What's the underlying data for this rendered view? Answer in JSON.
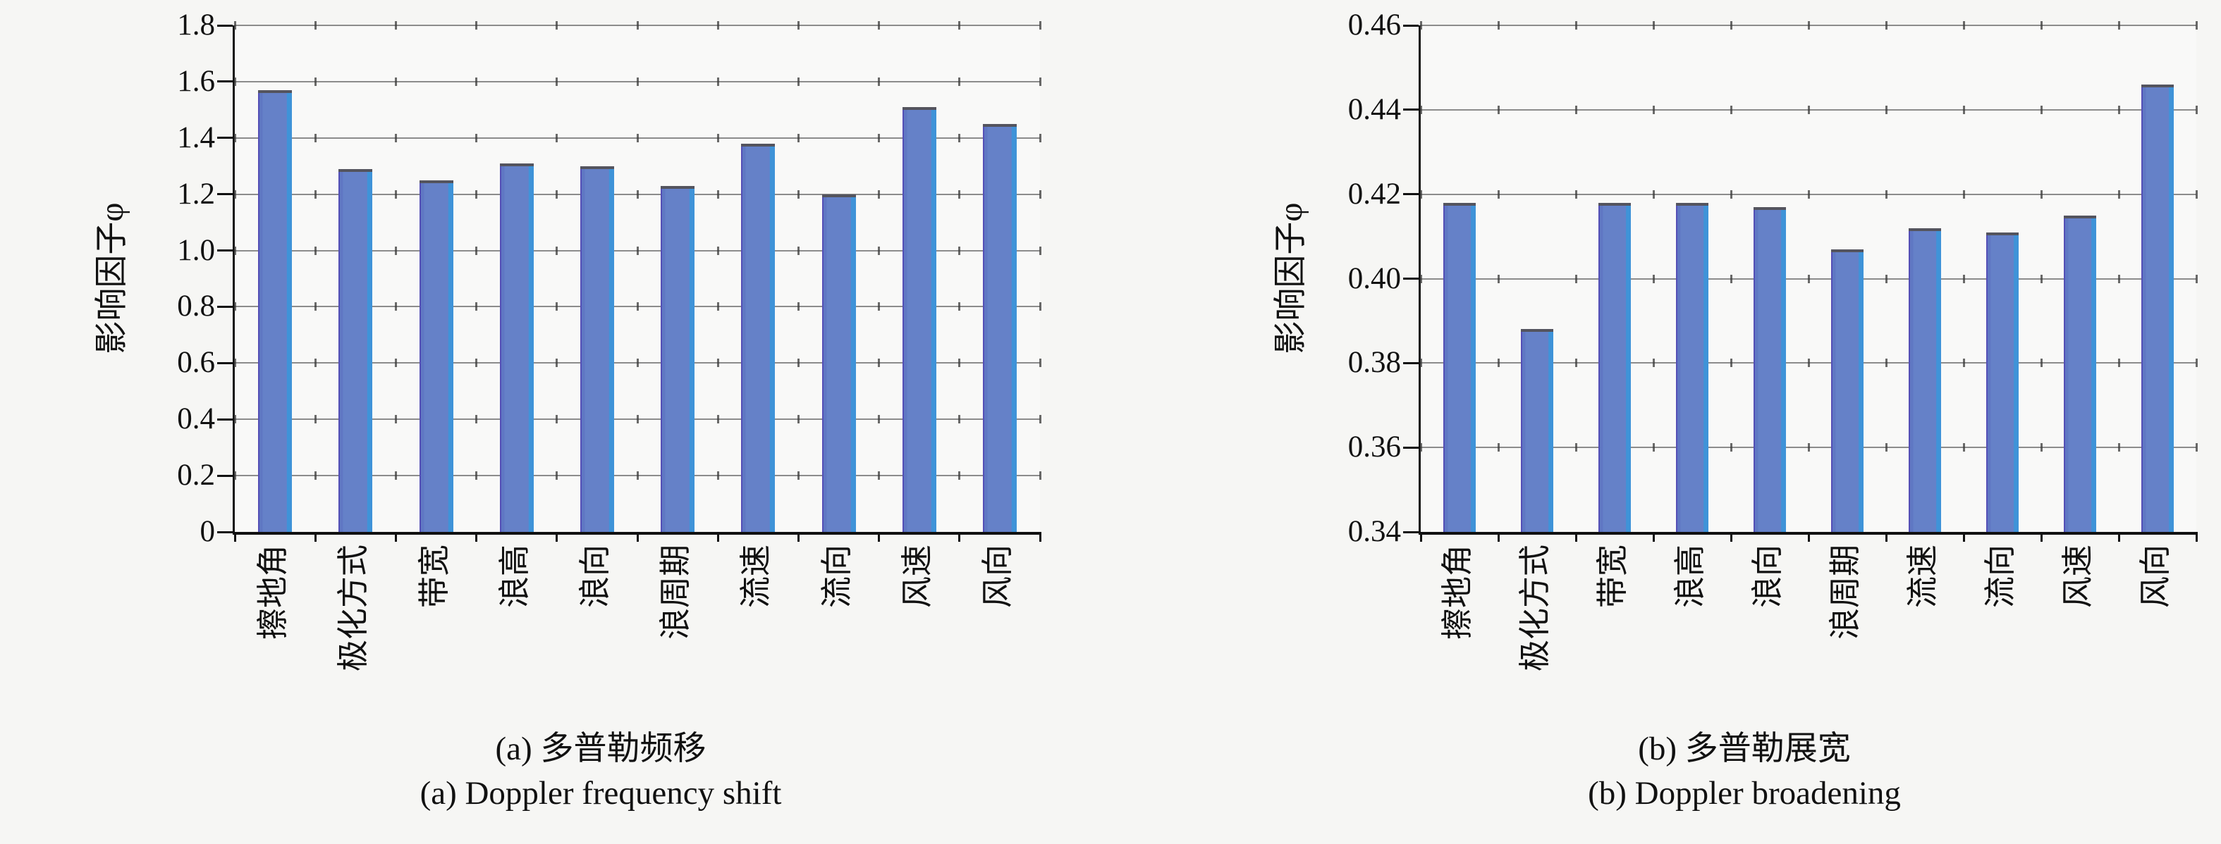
{
  "figure": {
    "background": "#f6f6f4",
    "gridline_color": "#8c8c8c",
    "axis_color": "#111111",
    "bar_fill_color": "#6581c8",
    "bar_edge_left_color": "#544fb6",
    "bar_edge_right_color": "#3f93d8",
    "bar_top_cap_color": "#54545e"
  },
  "chart_data": [
    {
      "type": "bar",
      "caption_zh": "(a) 多普勒频移",
      "caption_en": "(a) Doppler frequency shift",
      "ylabel": "影响因子φ",
      "categories": [
        "擦地角",
        "极化方式",
        "带宽",
        "浪高",
        "浪向",
        "浪周期",
        "流速",
        "流向",
        "风速",
        "风向"
      ],
      "values": [
        1.57,
        1.29,
        1.25,
        1.31,
        1.3,
        1.23,
        1.38,
        1.2,
        1.51,
        1.45
      ],
      "ylim": [
        0,
        1.8
      ],
      "grid": "horizontal",
      "legend": "none",
      "yticks": [
        {
          "label": "1.8",
          "value": 1.8
        },
        {
          "label": "1.6",
          "value": 1.6
        },
        {
          "label": "1.4",
          "value": 1.4
        },
        {
          "label": "1.2",
          "value": 1.2
        },
        {
          "label": "1.0",
          "value": 1.0
        },
        {
          "label": "0.8",
          "value": 0.8
        },
        {
          "label": "0.6",
          "value": 0.6
        },
        {
          "label": "0.4",
          "value": 0.4
        },
        {
          "label": "0.2",
          "value": 0.2
        },
        {
          "label": "0",
          "value": 0
        }
      ]
    },
    {
      "type": "bar",
      "caption_zh": "(b) 多普勒展宽",
      "caption_en": "(b) Doppler broadening",
      "ylabel": "影响因子φ",
      "categories": [
        "擦地角",
        "极化方式",
        "带宽",
        "浪高",
        "浪向",
        "浪周期",
        "流速",
        "流向",
        "风速",
        "风向"
      ],
      "values": [
        0.418,
        0.388,
        0.418,
        0.418,
        0.417,
        0.407,
        0.412,
        0.411,
        0.415,
        0.446
      ],
      "ylim": [
        0.34,
        0.46
      ],
      "grid": "horizontal",
      "legend": "none",
      "yticks": [
        {
          "label": "0.46",
          "value": 0.46
        },
        {
          "label": "0.44",
          "value": 0.44
        },
        {
          "label": "0.42",
          "value": 0.42
        },
        {
          "label": "0.40",
          "value": 0.4
        },
        {
          "label": "0.38",
          "value": 0.38
        },
        {
          "label": "0.36",
          "value": 0.36
        },
        {
          "label": "0.34",
          "value": 0.34
        }
      ]
    }
  ]
}
